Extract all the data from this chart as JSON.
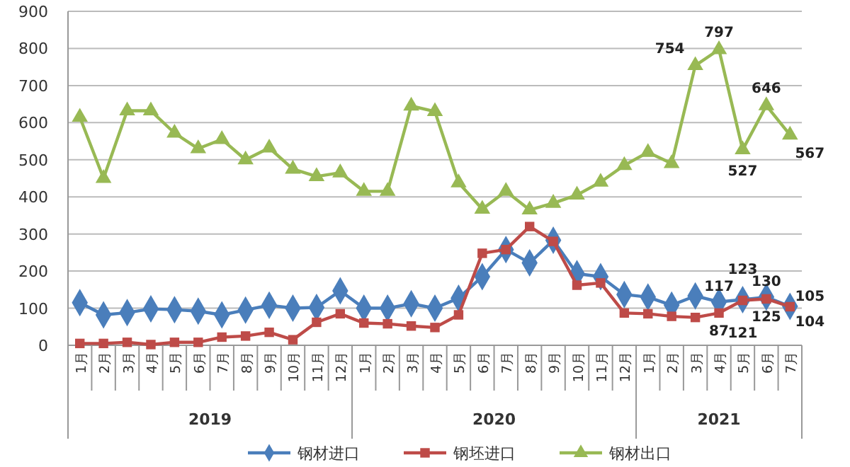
{
  "chart_data": {
    "type": "line",
    "categories": [
      "1月",
      "2月",
      "3月",
      "4月",
      "5月",
      "6月",
      "7月",
      "8月",
      "9月",
      "10月",
      "11月",
      "12月",
      "1月",
      "2月",
      "3月",
      "4月",
      "5月",
      "6月",
      "7月",
      "8月",
      "9月",
      "10月",
      "11月",
      "12月",
      "1月",
      "2月",
      "3月",
      "4月",
      "5月",
      "6月",
      "7月"
    ],
    "series": [
      {
        "name": "钢材进口",
        "color": "#4a7ebb",
        "marker": "diamond",
        "values": [
          115,
          82,
          88,
          98,
          96,
          92,
          82,
          95,
          108,
          100,
          102,
          147,
          100,
          100,
          112,
          100,
          127,
          185,
          258,
          222,
          283,
          193,
          185,
          137,
          130,
          108,
          133,
          117,
          123,
          130,
          105
        ],
        "value_labels": [
          null,
          null,
          null,
          null,
          null,
          null,
          null,
          null,
          null,
          null,
          null,
          null,
          null,
          null,
          null,
          null,
          null,
          null,
          null,
          null,
          null,
          null,
          null,
          null,
          null,
          null,
          null,
          "117",
          "123",
          "130",
          "105"
        ]
      },
      {
        "name": "钢坯进口",
        "color": "#be4b48",
        "marker": "square",
        "values": [
          5,
          5,
          8,
          2,
          8,
          8,
          22,
          25,
          35,
          15,
          62,
          85,
          60,
          58,
          52,
          48,
          82,
          248,
          258,
          320,
          280,
          162,
          168,
          87,
          85,
          78,
          75,
          87,
          121,
          125,
          104
        ],
        "value_labels": [
          null,
          null,
          null,
          null,
          null,
          null,
          null,
          null,
          null,
          null,
          null,
          null,
          null,
          null,
          null,
          null,
          null,
          null,
          null,
          null,
          null,
          null,
          null,
          null,
          null,
          null,
          null,
          "87",
          "121",
          "125",
          "104"
        ]
      },
      {
        "name": "钢材出口",
        "color": "#98b954",
        "marker": "triangle",
        "values": [
          615,
          450,
          632,
          632,
          572,
          530,
          555,
          500,
          532,
          475,
          455,
          465,
          415,
          415,
          645,
          630,
          438,
          367,
          415,
          365,
          383,
          405,
          440,
          485,
          520,
          490,
          754,
          797,
          527,
          646,
          567
        ],
        "value_labels": [
          null,
          null,
          null,
          null,
          null,
          null,
          null,
          null,
          null,
          null,
          null,
          null,
          null,
          null,
          null,
          null,
          null,
          null,
          null,
          null,
          null,
          null,
          null,
          null,
          null,
          null,
          "754",
          "797",
          "527",
          "646",
          "567"
        ]
      }
    ],
    "annotations": [
      "2019",
      "2020",
      "2021"
    ],
    "ylim": [
      0,
      900
    ],
    "yticks": [
      0,
      100,
      200,
      300,
      400,
      500,
      600,
      700,
      800,
      900
    ],
    "grid": "y",
    "legend": "bottom"
  }
}
